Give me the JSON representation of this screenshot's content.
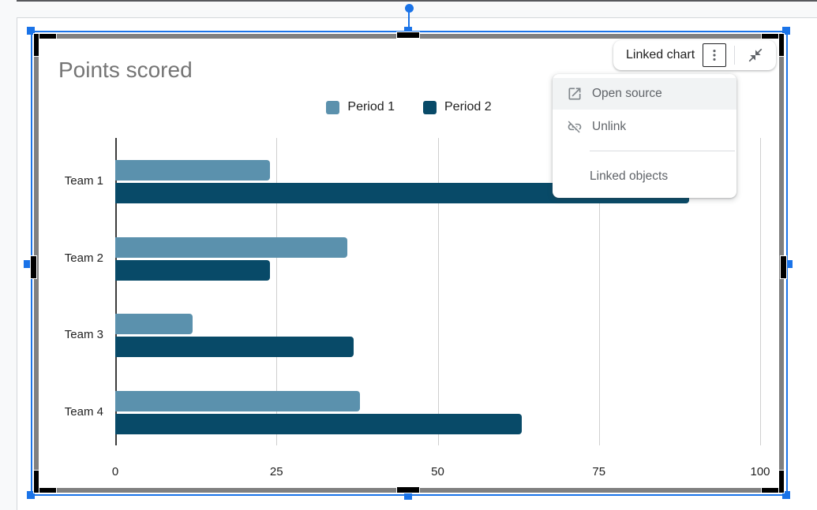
{
  "canvas": {
    "selection_label": "Linked chart",
    "toolbar": {
      "more_options_icon": "vertical-dots",
      "collapse_icon": "collapse-arrows"
    },
    "menu": {
      "items": [
        {
          "label": "Open source",
          "icon": "open-in-new",
          "highlighted": true
        },
        {
          "label": "Unlink",
          "icon": "link-off",
          "highlighted": false
        },
        {
          "label": "Linked objects",
          "icon": "",
          "highlighted": false
        }
      ]
    }
  },
  "chart_data": {
    "type": "bar",
    "orientation": "horizontal",
    "title": "Points scored",
    "title_color": "#757575",
    "categories": [
      "Team 1",
      "Team 2",
      "Team 3",
      "Team 4"
    ],
    "series": [
      {
        "name": "Period 1",
        "color": "#5b91ad",
        "values": [
          24,
          36,
          12,
          38
        ]
      },
      {
        "name": "Period 2",
        "color": "#084a68",
        "values": [
          89,
          24,
          37,
          63
        ]
      }
    ],
    "xlabel": "",
    "ylabel": "",
    "xlim": [
      0,
      100
    ],
    "x_ticks": [
      0,
      25,
      50,
      75,
      100
    ],
    "grid": true,
    "legend_position": "top"
  },
  "selection": {
    "accent_color": "#1a73e8"
  }
}
